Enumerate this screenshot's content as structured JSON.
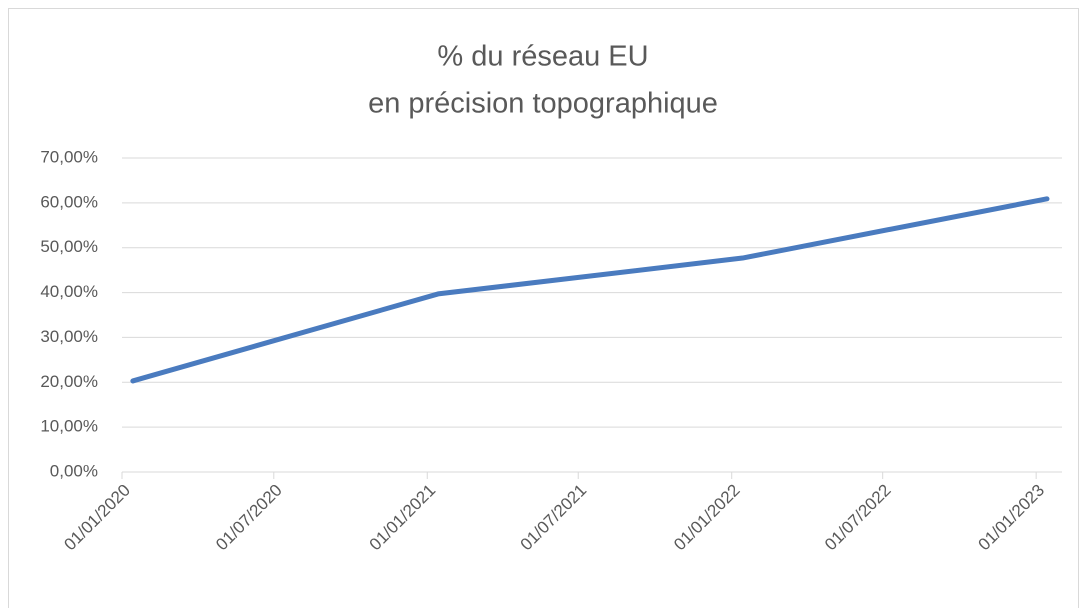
{
  "chart_data": {
    "type": "line",
    "title": [
      "% du réseau EU",
      "en précision topographique"
    ],
    "x": [
      "2020-01-14",
      "2021-01-14",
      "2022-01-14",
      "2023-01-14"
    ],
    "series": [
      {
        "name": "% du réseau EU",
        "color": "#4a7bbf",
        "values": [
          20.3,
          39.7,
          47.7,
          60.9
        ]
      }
    ],
    "xlim": [
      "2020-01-01",
      "2023-02-01"
    ],
    "xticks": [
      {
        "value": "2020-01-01",
        "label": "01/01/2020"
      },
      {
        "value": "2020-07-01",
        "label": "01/07/2020"
      },
      {
        "value": "2021-01-01",
        "label": "01/01/2021"
      },
      {
        "value": "2021-07-01",
        "label": "01/07/2021"
      },
      {
        "value": "2022-01-01",
        "label": "01/01/2022"
      },
      {
        "value": "2022-07-01",
        "label": "01/07/2022"
      },
      {
        "value": "2023-01-01",
        "label": "01/01/2023"
      }
    ],
    "ylim": [
      0,
      70
    ],
    "yticks": [
      {
        "value": 0,
        "label": "0,00%"
      },
      {
        "value": 10,
        "label": "10,00%"
      },
      {
        "value": 20,
        "label": "20,00%"
      },
      {
        "value": 30,
        "label": "30,00%"
      },
      {
        "value": 40,
        "label": "40,00%"
      },
      {
        "value": 50,
        "label": "50,00%"
      },
      {
        "value": 60,
        "label": "60,00%"
      },
      {
        "value": 70,
        "label": "70,00%"
      }
    ],
    "grid": true
  }
}
